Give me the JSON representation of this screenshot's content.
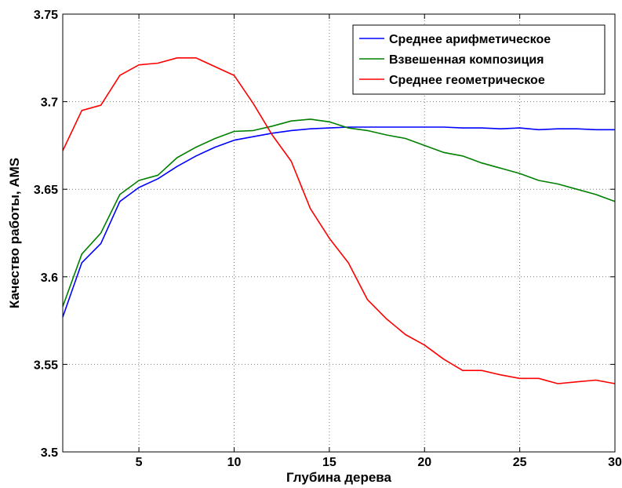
{
  "chart_data": {
    "type": "line",
    "title": "",
    "xlabel": "Глубина дерева",
    "ylabel": "Качество работы, AMS",
    "xlim": [
      1,
      30
    ],
    "ylim": [
      3.5,
      3.75
    ],
    "xticks": [
      5,
      10,
      15,
      20,
      25,
      30
    ],
    "yticks": [
      3.5,
      3.55,
      3.6,
      3.65,
      3.7,
      3.75
    ],
    "ytick_labels": [
      "3.5",
      "3.55",
      "3.6",
      "3.65",
      "3.7",
      "3.75"
    ],
    "grid": true,
    "legend_position": "top-right",
    "x": [
      1,
      2,
      3,
      4,
      5,
      6,
      7,
      8,
      9,
      10,
      11,
      12,
      13,
      14,
      15,
      16,
      17,
      18,
      19,
      20,
      21,
      22,
      23,
      24,
      25,
      26,
      27,
      28,
      29,
      30
    ],
    "series": [
      {
        "name": "Среднее арифметическое",
        "color": "#0000ff",
        "values": [
          3.577,
          3.608,
          3.619,
          3.643,
          3.651,
          3.656,
          3.663,
          3.669,
          3.674,
          3.678,
          3.68,
          3.682,
          3.6835,
          3.6845,
          3.685,
          3.6855,
          3.6855,
          3.6855,
          3.6855,
          3.6855,
          3.6855,
          3.685,
          3.685,
          3.6845,
          3.685,
          3.684,
          3.6845,
          3.6845,
          3.684,
          3.684
        ]
      },
      {
        "name": "Взвешенная композиция",
        "color": "#008000",
        "values": [
          3.583,
          3.613,
          3.625,
          3.647,
          3.655,
          3.658,
          3.668,
          3.674,
          3.679,
          3.683,
          3.6835,
          3.686,
          3.689,
          3.69,
          3.6885,
          3.685,
          3.6835,
          3.681,
          3.679,
          3.675,
          3.671,
          3.669,
          3.665,
          3.662,
          3.659,
          3.655,
          3.653,
          3.65,
          3.647,
          3.643
        ]
      },
      {
        "name": "Среднее геометрическое",
        "color": "#ff0000",
        "values": [
          3.672,
          3.695,
          3.698,
          3.715,
          3.721,
          3.722,
          3.725,
          3.725,
          3.72,
          3.715,
          3.699,
          3.681,
          3.666,
          3.639,
          3.622,
          3.608,
          3.587,
          3.576,
          3.567,
          3.561,
          3.553,
          3.5465,
          3.5465,
          3.544,
          3.542,
          3.542,
          3.539,
          3.54,
          3.541,
          3.539
        ]
      }
    ]
  }
}
